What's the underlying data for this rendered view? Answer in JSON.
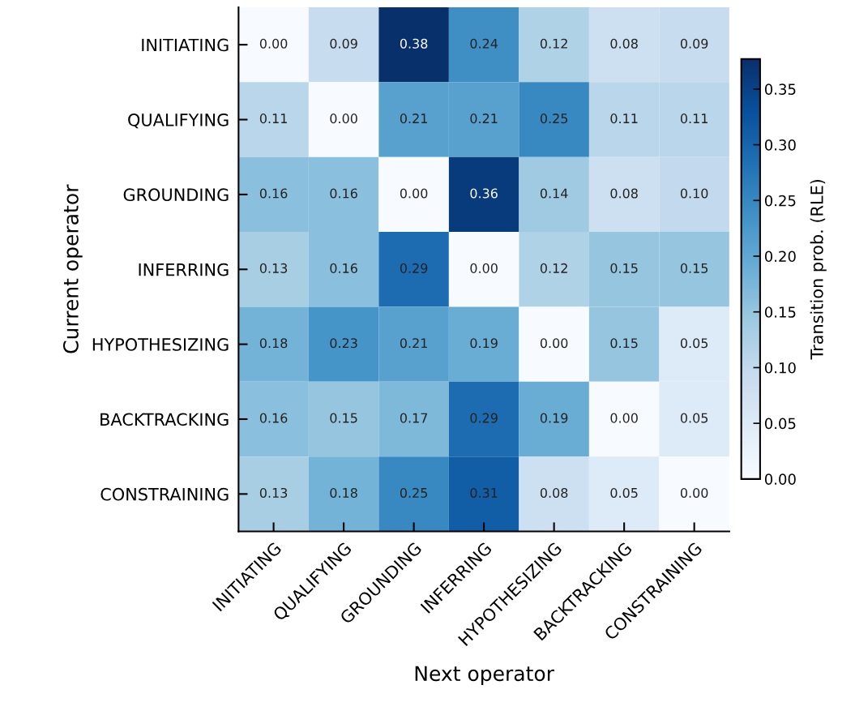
{
  "chart_data": {
    "type": "heatmap",
    "xlabel": "Next operator",
    "ylabel": "Current operator",
    "clabel": "Transition prob. (RLE)",
    "categories": [
      "INITIATING",
      "QUALIFYING",
      "GROUNDING",
      "INFERRING",
      "HYPOTHESIZING",
      "BACKTRACKING",
      "CONSTRAINING"
    ],
    "y_categories": [
      "INITIATING",
      "QUALIFYING",
      "GROUNDING",
      "INFERRING",
      "HYPOTHESIZING",
      "BACKTRACKING",
      "CONSTRAINING"
    ],
    "cells": [
      [
        0.0,
        0.09,
        0.38,
        0.24,
        0.12,
        0.08,
        0.09
      ],
      [
        0.11,
        0.0,
        0.21,
        0.21,
        0.25,
        0.11,
        0.11
      ],
      [
        0.16,
        0.16,
        0.0,
        0.36,
        0.14,
        0.08,
        0.1
      ],
      [
        0.13,
        0.16,
        0.29,
        0.0,
        0.12,
        0.15,
        0.15
      ],
      [
        0.18,
        0.23,
        0.21,
        0.19,
        0.0,
        0.15,
        0.05
      ],
      [
        0.16,
        0.15,
        0.17,
        0.29,
        0.19,
        0.0,
        0.05
      ],
      [
        0.13,
        0.18,
        0.25,
        0.31,
        0.08,
        0.05,
        0.0
      ]
    ],
    "cell_labels": [
      [
        "0.00",
        "0.09",
        "0.38",
        "0.24",
        "0.12",
        "0.08",
        "0.09"
      ],
      [
        "0.11",
        "0.00",
        "0.21",
        "0.21",
        "0.25",
        "0.11",
        "0.11"
      ],
      [
        "0.16",
        "0.16",
        "0.00",
        "0.36",
        "0.14",
        "0.08",
        "0.10"
      ],
      [
        "0.13",
        "0.16",
        "0.29",
        "0.00",
        "0.12",
        "0.15",
        "0.15"
      ],
      [
        "0.18",
        "0.23",
        "0.21",
        "0.19",
        "0.00",
        "0.15",
        "0.05"
      ],
      [
        "0.16",
        "0.15",
        "0.17",
        "0.29",
        "0.19",
        "0.00",
        "0.05"
      ],
      [
        "0.13",
        "0.18",
        "0.25",
        "0.31",
        "0.08",
        "0.05",
        "0.00"
      ]
    ],
    "clim": [
      0,
      0.377
    ],
    "cticks": [
      {
        "value": 0,
        "label": "0.00"
      },
      {
        "value": 0.05,
        "label": "0.05"
      },
      {
        "value": 0.1,
        "label": "0.10"
      },
      {
        "value": 0.15,
        "label": "0.15"
      },
      {
        "value": 0.2,
        "label": "0.20"
      },
      {
        "value": 0.25,
        "label": "0.25"
      },
      {
        "value": 0.3,
        "label": "0.30"
      },
      {
        "value": 0.35,
        "label": "0.35"
      }
    ],
    "data_labels": true,
    "grid": false,
    "legend": false
  }
}
